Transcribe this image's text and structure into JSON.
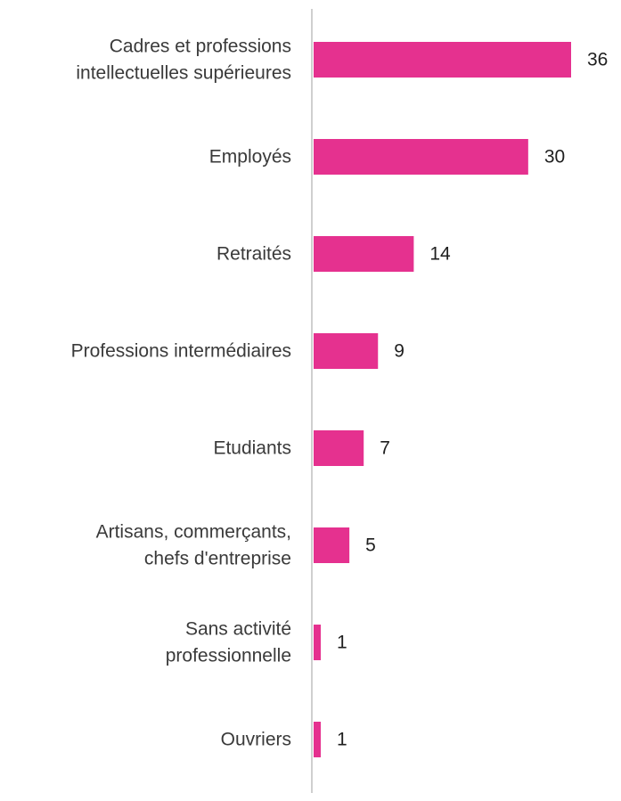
{
  "chart_data": {
    "type": "bar",
    "orientation": "horizontal",
    "title": "",
    "xlabel": "",
    "ylabel": "",
    "categories": [
      "Cadres et professions intellectuelles supérieures",
      "Employés",
      "Retraités",
      "Professions intermédiaires",
      "Etudiants",
      "Artisans, commerçants, chefs d'entreprise",
      "Sans activité professionnelle",
      "Ouvriers"
    ],
    "category_lines": [
      [
        "Cadres et professions",
        "intellectuelles supérieures"
      ],
      [
        "Employés"
      ],
      [
        "Retraités"
      ],
      [
        "Professions intermédiaires"
      ],
      [
        "Etudiants"
      ],
      [
        "Artisans, commerçants,",
        "chefs d'entreprise"
      ],
      [
        "Sans activité",
        "professionnelle"
      ],
      [
        "Ouvriers"
      ]
    ],
    "values": [
      36,
      30,
      14,
      9,
      7,
      5,
      1,
      1
    ],
    "value_labels": [
      "36",
      "30",
      "14",
      "9",
      "7",
      "5",
      "1",
      "1"
    ],
    "xlim": [
      0,
      36
    ],
    "grid": false,
    "legend": "none",
    "colors": {
      "bar": "#E5318F",
      "axis": "#BFBFBF",
      "category_text": "#3A3A3A",
      "value_text": "#1F1F1F"
    }
  }
}
